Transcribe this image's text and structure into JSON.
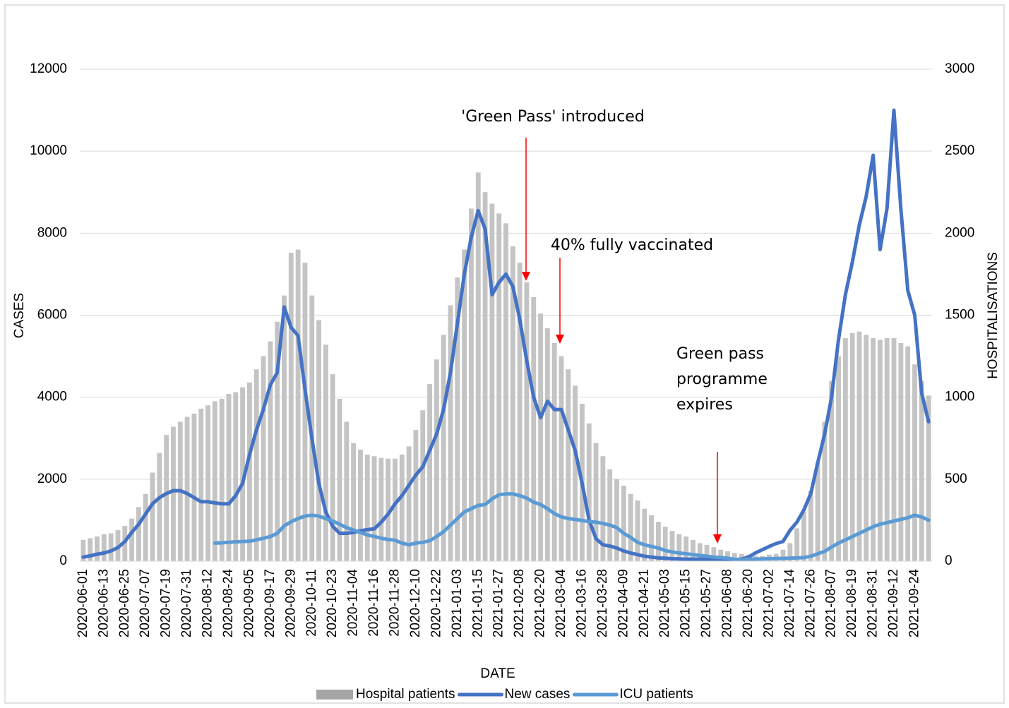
{
  "chart_data": {
    "type": "combo",
    "categories": [
      "2020-06-01",
      null,
      null,
      "2020-06-13",
      null,
      null,
      "2020-06-25",
      null,
      null,
      "2020-07-07",
      null,
      null,
      "2020-07-19",
      null,
      null,
      "2020-07-31",
      null,
      null,
      "2020-08-12",
      null,
      null,
      "2020-08-24",
      null,
      null,
      "2020-09-05",
      null,
      null,
      "2020-09-17",
      null,
      null,
      "2020-09-29",
      null,
      null,
      "2020-10-11",
      null,
      null,
      "2020-10-23",
      null,
      null,
      "2020-11-04",
      null,
      null,
      "2020-11-16",
      null,
      null,
      "2020-11-28",
      null,
      null,
      "2020-12-10",
      null,
      null,
      "2020-12-22",
      null,
      null,
      "2021-01-03",
      null,
      null,
      "2021-01-15",
      null,
      null,
      "2021-01-27",
      null,
      null,
      "2021-02-08",
      null,
      null,
      "2021-02-20",
      null,
      null,
      "2021-03-04",
      null,
      null,
      "2021-03-16",
      null,
      null,
      "2021-03-28",
      null,
      null,
      "2021-04-09",
      null,
      null,
      "2021-04-21",
      null,
      null,
      "2021-05-03",
      null,
      null,
      "2021-05-15",
      null,
      null,
      "2021-05-27",
      null,
      null,
      "2021-06-08",
      null,
      null,
      "2021-06-20",
      null,
      null,
      "2021-07-02",
      null,
      null,
      "2021-07-14",
      null,
      null,
      "2021-07-26",
      null,
      null,
      "2021-08-07",
      null,
      null,
      "2021-08-19",
      null,
      null,
      "2021-08-31",
      null,
      null,
      "2021-09-12",
      null,
      null,
      "2021-09-24",
      null,
      null
    ],
    "series": [
      {
        "name": "Hospital patients",
        "type": "bar",
        "axis": "y2",
        "color": "#c4c4c4",
        "legend_color": "#a5a5a5",
        "values": [
          130,
          140,
          150,
          165,
          170,
          190,
          215,
          260,
          330,
          410,
          540,
          660,
          770,
          820,
          850,
          880,
          900,
          930,
          950,
          975,
          990,
          1020,
          1030,
          1060,
          1090,
          1170,
          1250,
          1340,
          1460,
          1620,
          1880,
          1900,
          1820,
          1620,
          1470,
          1320,
          1140,
          990,
          850,
          720,
          680,
          650,
          640,
          630,
          625,
          625,
          650,
          700,
          800,
          920,
          1080,
          1230,
          1380,
          1560,
          1730,
          1900,
          2150,
          2370,
          2250,
          2180,
          2120,
          2060,
          1920,
          1820,
          1700,
          1610,
          1510,
          1420,
          1330,
          1250,
          1170,
          1070,
          960,
          840,
          720,
          640,
          560,
          500,
          460,
          410,
          370,
          320,
          280,
          240,
          210,
          185,
          165,
          150,
          130,
          110,
          100,
          85,
          70,
          60,
          50,
          45,
          40,
          32,
          30,
          40,
          45,
          70,
          110,
          200,
          300,
          430,
          600,
          850,
          1100,
          1250,
          1360,
          1390,
          1400,
          1380,
          1360,
          1350,
          1360,
          1360,
          1330,
          1310,
          1200,
          1100,
          1010
        ]
      },
      {
        "name": "New cases",
        "type": "line",
        "axis": "y",
        "color": "#4472c4",
        "values": [
          100,
          130,
          170,
          200,
          250,
          330,
          480,
          700,
          900,
          1150,
          1400,
          1550,
          1650,
          1720,
          1720,
          1650,
          1550,
          1450,
          1450,
          1420,
          1400,
          1400,
          1600,
          1900,
          2600,
          3200,
          3700,
          4300,
          4600,
          6200,
          5700,
          5500,
          4200,
          3000,
          1900,
          1200,
          850,
          680,
          680,
          700,
          740,
          770,
          790,
          950,
          1150,
          1400,
          1600,
          1850,
          2100,
          2300,
          2700,
          3100,
          3700,
          4600,
          5800,
          7000,
          7900,
          8550,
          8100,
          6500,
          6800,
          7000,
          6700,
          5900,
          4900,
          4000,
          3500,
          3900,
          3700,
          3700,
          3200,
          2700,
          1900,
          1000,
          550,
          400,
          370,
          320,
          250,
          200,
          160,
          120,
          100,
          80,
          70,
          60,
          55,
          50,
          50,
          50,
          50,
          45,
          40,
          40,
          40,
          50,
          100,
          200,
          280,
          360,
          430,
          480,
          750,
          950,
          1250,
          1650,
          2400,
          3100,
          4000,
          5400,
          6500,
          7300,
          8200,
          8900,
          9900,
          7600,
          8600,
          11000,
          8600,
          6600,
          6000,
          4100,
          3400
        ]
      },
      {
        "name": "ICU patients",
        "type": "line",
        "axis": "y2",
        "color": "#5b9bd5",
        "values": [
          null,
          null,
          null,
          null,
          null,
          null,
          null,
          null,
          null,
          null,
          null,
          null,
          null,
          null,
          null,
          null,
          null,
          null,
          null,
          110,
          112,
          115,
          118,
          120,
          122,
          130,
          140,
          150,
          170,
          215,
          240,
          260,
          275,
          280,
          275,
          260,
          245,
          225,
          205,
          190,
          175,
          160,
          150,
          140,
          132,
          128,
          110,
          100,
          110,
          115,
          125,
          150,
          180,
          220,
          260,
          300,
          320,
          340,
          345,
          380,
          405,
          410,
          410,
          400,
          385,
          360,
          345,
          320,
          290,
          270,
          260,
          255,
          248,
          242,
          238,
          230,
          220,
          205,
          170,
          145,
          115,
          100,
          90,
          80,
          65,
          56,
          50,
          45,
          40,
          35,
          30,
          25,
          22,
          18,
          12,
          9,
          12,
          13,
          14,
          15,
          16,
          17,
          18,
          20,
          22,
          30,
          45,
          60,
          86,
          110,
          130,
          150,
          170,
          190,
          210,
          225,
          235,
          245,
          255,
          265,
          280,
          270,
          250
        ]
      }
    ],
    "ylim": [
      0,
      12000
    ],
    "yticks": [
      0,
      2000,
      4000,
      6000,
      8000,
      10000,
      12000
    ],
    "y2lim": [
      0,
      3000
    ],
    "y2ticks": [
      0,
      500,
      1000,
      1500,
      2000,
      2500,
      3000
    ],
    "grid": true,
    "legend": "bottom",
    "xlabel": "DATE",
    "ylabel": "CASES",
    "y2label": "HOSPITALISATIONS",
    "annotations": [
      {
        "text": [
          "'Green Pass' introduced"
        ],
        "color": "#ff0000"
      },
      {
        "text": [
          "40% fully vaccinated"
        ],
        "color": "#ff0000"
      },
      {
        "text": [
          "Green pass",
          "programme",
          "expires"
        ],
        "color": "#ff0000"
      }
    ]
  }
}
